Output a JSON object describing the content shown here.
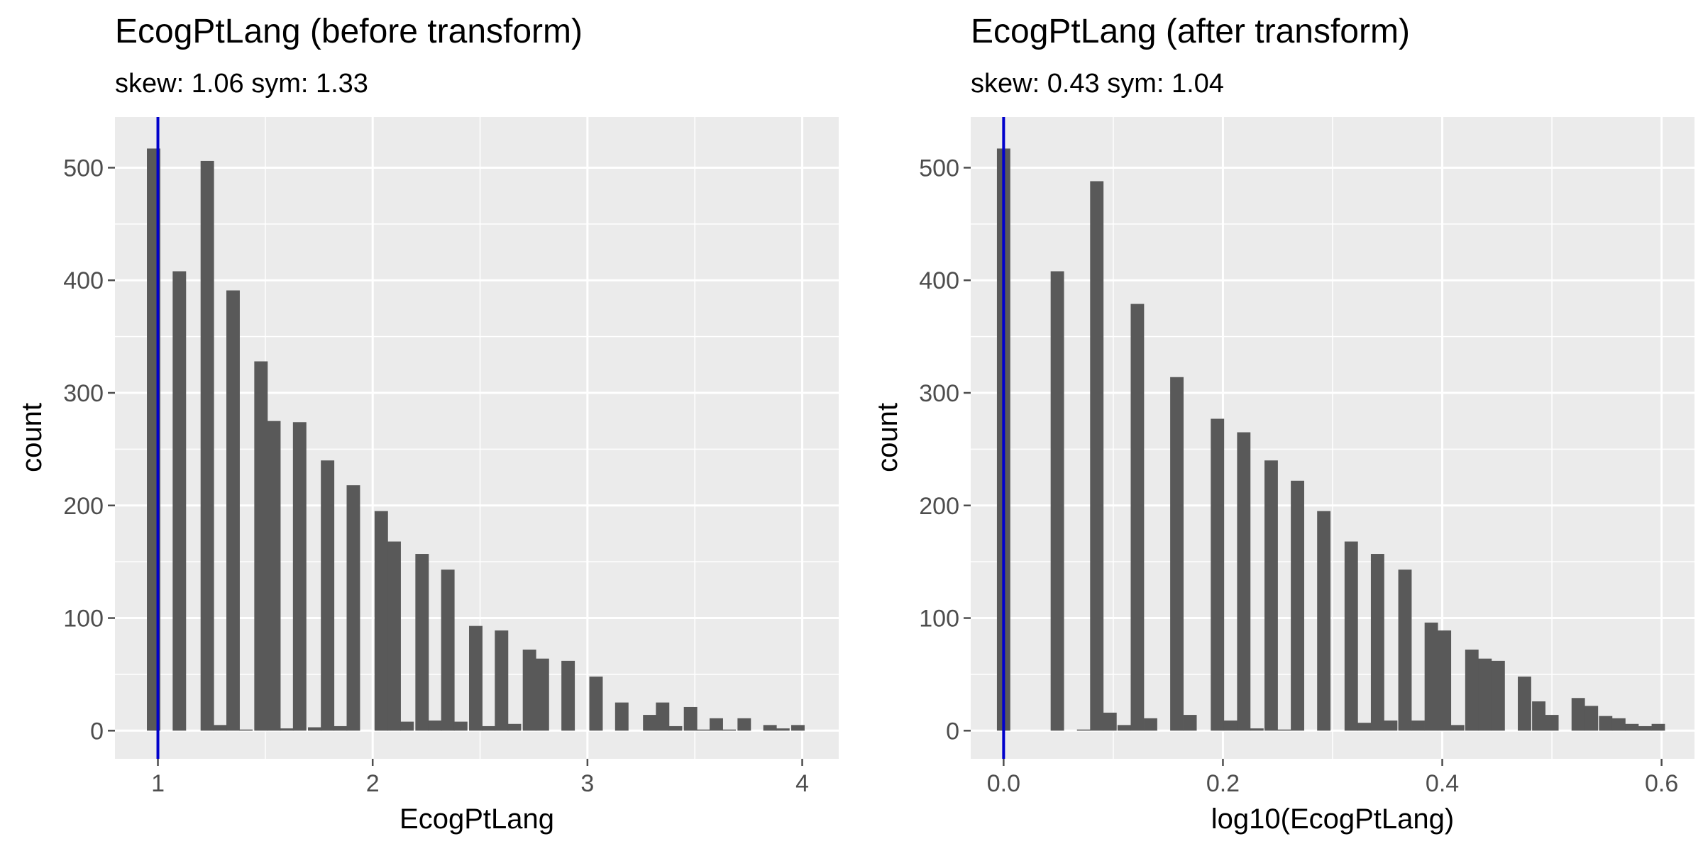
{
  "colors": {
    "panel": "#ebebeb",
    "grid": "#ffffff",
    "bar": "#595959",
    "vline": "#0000cc",
    "tick": "#4d4d4d",
    "text": "#000000"
  },
  "chart_data": [
    {
      "type": "bar",
      "title": "EcogPtLang (before transform)",
      "subtitle": "skew: 1.06 sym: 1.33",
      "xlabel": "EcogPtLang",
      "ylabel": "count",
      "xlim": [
        0.8,
        4.17
      ],
      "ylim": [
        -25,
        545
      ],
      "x_ticks": [
        1,
        2,
        3,
        4
      ],
      "x_tick_labels": [
        "1",
        "2",
        "3",
        "4"
      ],
      "y_ticks": [
        0,
        100,
        200,
        300,
        400,
        500
      ],
      "y_tick_labels": [
        "0",
        "100",
        "200",
        "300",
        "400",
        "500"
      ],
      "vline": 1,
      "bin_width": 0.0625,
      "bins_x": [
        0.98,
        1.04,
        1.1,
        1.16,
        1.23,
        1.29,
        1.35,
        1.41,
        1.48,
        1.54,
        1.6,
        1.66,
        1.73,
        1.79,
        1.85,
        1.91,
        1.98,
        2.04,
        2.1,
        2.16,
        2.23,
        2.29,
        2.35,
        2.41,
        2.48,
        2.54,
        2.6,
        2.66,
        2.73,
        2.79,
        2.85,
        2.91,
        2.98,
        3.04,
        3.1,
        3.16,
        3.23,
        3.29,
        3.35,
        3.41,
        3.48,
        3.54,
        3.6,
        3.66,
        3.73,
        3.79,
        3.85,
        3.91,
        3.98
      ],
      "values": [
        517,
        0,
        408,
        0,
        506,
        5,
        391,
        1,
        328,
        275,
        2,
        274,
        3,
        240,
        4,
        218,
        0,
        195,
        168,
        8,
        157,
        9,
        143,
        8,
        93,
        4,
        89,
        6,
        72,
        64,
        0,
        62,
        0,
        48,
        0,
        25,
        0,
        14,
        25,
        4,
        21,
        1,
        11,
        1,
        11,
        0,
        5,
        2,
        5
      ]
    },
    {
      "type": "bar",
      "title": "EcogPtLang (after transform)",
      "subtitle": "skew: 0.43 sym: 1.04",
      "xlabel": "log10(EcogPtLang)",
      "ylabel": "count",
      "xlim": [
        -0.03,
        0.63
      ],
      "ylim": [
        -25,
        545
      ],
      "x_ticks": [
        0,
        0.2,
        0.4,
        0.6
      ],
      "x_tick_labels": [
        "0.0",
        "0.2",
        "0.4",
        "0.6"
      ],
      "y_ticks": [
        0,
        100,
        200,
        300,
        400,
        500
      ],
      "y_tick_labels": [
        "0",
        "100",
        "200",
        "300",
        "400",
        "500"
      ],
      "vline": 0,
      "bin_width": 0.0122,
      "bins_x": [
        0.0,
        0.012,
        0.024,
        0.036,
        0.049,
        0.061,
        0.073,
        0.085,
        0.097,
        0.11,
        0.122,
        0.134,
        0.146,
        0.158,
        0.17,
        0.183,
        0.195,
        0.207,
        0.219,
        0.231,
        0.244,
        0.256,
        0.268,
        0.28,
        0.292,
        0.305,
        0.317,
        0.329,
        0.341,
        0.353,
        0.366,
        0.378,
        0.39,
        0.402,
        0.414,
        0.427,
        0.439,
        0.451,
        0.463,
        0.475,
        0.488,
        0.5,
        0.512,
        0.524,
        0.536,
        0.549,
        0.561,
        0.573,
        0.585,
        0.597
      ],
      "values": [
        517,
        0,
        0,
        0,
        408,
        0,
        1,
        488,
        16,
        5,
        379,
        11,
        0,
        314,
        14,
        0,
        277,
        9,
        265,
        2,
        240,
        1,
        222,
        0,
        195,
        0,
        168,
        7,
        157,
        9,
        143,
        9,
        96,
        89,
        5,
        72,
        64,
        62,
        0,
        48,
        26,
        14,
        0,
        29,
        22,
        13,
        11,
        6,
        4,
        6
      ]
    }
  ]
}
